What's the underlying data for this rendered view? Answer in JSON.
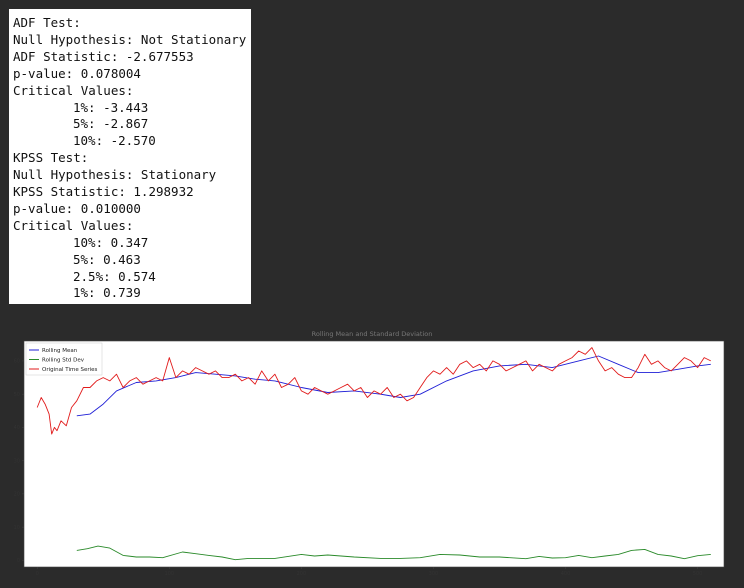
{
  "output_lines": [
    "ADF Test:",
    "Null Hypothesis: Not Stationary",
    "ADF Statistic: -2.677553",
    "p-value: 0.078004",
    "Critical Values:",
    "\t1%: -3.443",
    "\t5%: -2.867",
    "\t10%: -2.570",
    "KPSS Test:",
    "Null Hypothesis: Stationary",
    "KPSS Statistic: 1.298932",
    "p-value: 0.010000",
    "Critical Values:",
    "\t10%: 0.347",
    "\t5%: 0.463",
    "\t2.5%: 0.574",
    "\t1%: 0.739"
  ],
  "chart_data": {
    "type": "line",
    "title": "Rolling Mean and Standard Deviation",
    "xlim": [
      -10,
      520
    ],
    "ylim": [
      -2,
      66
    ],
    "xticks": [
      0,
      100,
      200,
      300,
      400,
      500
    ],
    "yticks": [
      0,
      10,
      20,
      30,
      40,
      50,
      60
    ],
    "legend_position": "top-left",
    "series": [
      {
        "name": "Rolling Mean",
        "color": "#1f1fd6",
        "x": [
          30,
          40,
          50,
          60,
          75,
          90,
          105,
          120,
          135,
          150,
          165,
          180,
          200,
          220,
          240,
          260,
          275,
          290,
          310,
          330,
          350,
          370,
          390,
          410,
          425,
          440,
          455,
          470,
          485,
          500,
          510
        ],
        "y": [
          43.5,
          44,
          47,
          51,
          53.5,
          54,
          55,
          56.5,
          56,
          55.5,
          54.5,
          54,
          52,
          50.5,
          51,
          50,
          49,
          50,
          54,
          57,
          58.5,
          59,
          58,
          60,
          61.5,
          59,
          56.5,
          56.5,
          57.5,
          58.5,
          59
        ]
      },
      {
        "name": "Rolling Std Dev",
        "color": "#2a8a2a",
        "x": [
          30,
          38,
          46,
          55,
          65,
          75,
          85,
          95,
          110,
          120,
          130,
          140,
          150,
          160,
          170,
          180,
          200,
          210,
          220,
          240,
          260,
          275,
          290,
          305,
          320,
          335,
          350,
          370,
          380,
          390,
          400,
          410,
          420,
          430,
          440,
          450,
          460,
          470,
          480,
          490,
          500,
          510
        ],
        "y": [
          3,
          3.5,
          4.3,
          3.7,
          1.5,
          1,
          1,
          0.8,
          2.5,
          2,
          1.5,
          1,
          0.2,
          0.6,
          0.6,
          0.6,
          1.8,
          1.3,
          1.6,
          1,
          0.6,
          0.6,
          0.8,
          1.8,
          1.6,
          1,
          1,
          0.5,
          1.2,
          0.7,
          0.8,
          1.5,
          0.8,
          1.3,
          1.8,
          3,
          3.3,
          1.8,
          1.3,
          0.5,
          1.4,
          1.8
        ]
      },
      {
        "name": "Original Time Series",
        "color": "#e11b1b",
        "x": [
          0,
          3,
          6,
          9,
          11,
          13,
          15,
          18,
          22,
          26,
          30,
          35,
          40,
          45,
          50,
          55,
          60,
          65,
          70,
          75,
          80,
          85,
          90,
          95,
          100,
          105,
          110,
          115,
          120,
          125,
          130,
          135,
          140,
          145,
          150,
          155,
          160,
          165,
          170,
          175,
          180,
          185,
          190,
          195,
          200,
          205,
          210,
          215,
          220,
          225,
          230,
          235,
          240,
          245,
          250,
          255,
          260,
          265,
          270,
          275,
          280,
          285,
          290,
          295,
          300,
          305,
          310,
          315,
          320,
          325,
          330,
          335,
          340,
          345,
          350,
          355,
          360,
          365,
          370,
          375,
          380,
          385,
          390,
          395,
          400,
          405,
          410,
          415,
          420,
          425,
          430,
          435,
          440,
          445,
          450,
          455,
          460,
          465,
          470,
          475,
          480,
          485,
          490,
          495,
          500,
          505,
          510
        ],
        "y": [
          46,
          49,
          47,
          44,
          38,
          40,
          39,
          42,
          40.5,
          46,
          48,
          52,
          52,
          54,
          55,
          54,
          56,
          52,
          54,
          55,
          53,
          54,
          55,
          54,
          61,
          55,
          57,
          56,
          58,
          57,
          56,
          57,
          55,
          55,
          56,
          54,
          55,
          53,
          57,
          54,
          56,
          52,
          53,
          55,
          51,
          50,
          52,
          51,
          50,
          51,
          52,
          53,
          51,
          52,
          49,
          51,
          50,
          52,
          49,
          50,
          48,
          49,
          52,
          55,
          57,
          56,
          58,
          56,
          59,
          60,
          58,
          59,
          57,
          60,
          59,
          57,
          58,
          59,
          60,
          57,
          59,
          58,
          57,
          59,
          60,
          61,
          63,
          62,
          64,
          60,
          57,
          58,
          56,
          55,
          55,
          58,
          62,
          59,
          60,
          58,
          57,
          59,
          61,
          60,
          58,
          61,
          60
        ]
      }
    ]
  }
}
